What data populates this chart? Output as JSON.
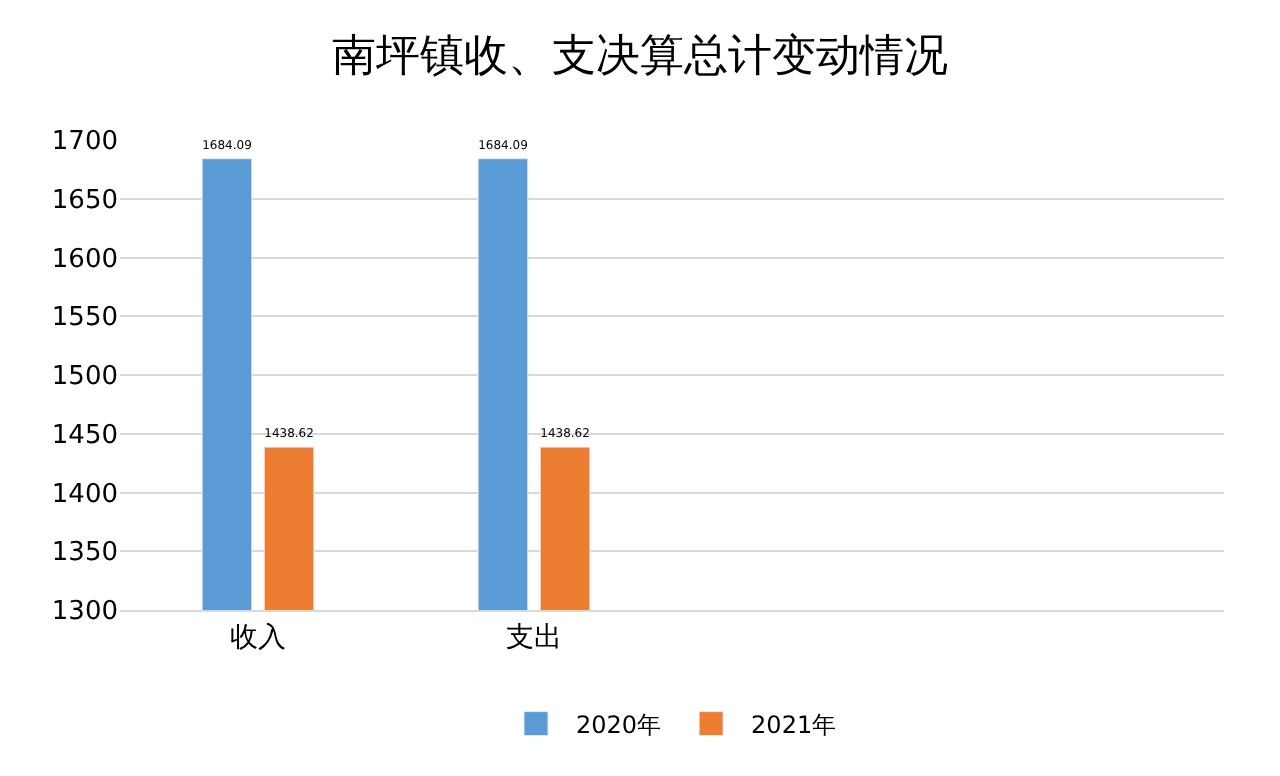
{
  "chart_data": {
    "type": "bar",
    "title": "南坪镇收、支决算总计变动情况",
    "categories": [
      "收入",
      "支出",
      null,
      null
    ],
    "series": [
      {
        "name": "2020年",
        "color": "#5b9bd5",
        "values": [
          1684.09,
          1684.09,
          null,
          null
        ]
      },
      {
        "name": "2021年",
        "color": "#ed7d31",
        "values": [
          1438.62,
          1438.62,
          null,
          null
        ]
      }
    ],
    "ylim": [
      1300,
      1700
    ],
    "yticks": [
      1300,
      1350,
      1400,
      1450,
      1500,
      1550,
      1600,
      1650,
      1700
    ],
    "grid": "y",
    "legend": "bottom",
    "data_labels": true
  }
}
